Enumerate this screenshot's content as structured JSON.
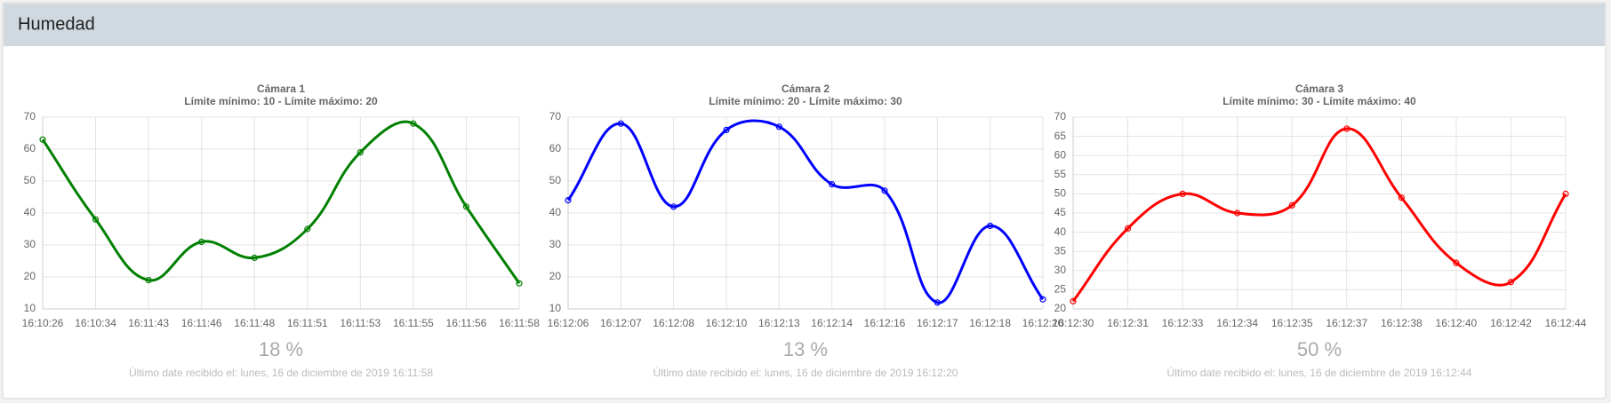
{
  "header": {
    "title": "Humedad"
  },
  "chart_data": [
    {
      "type": "line",
      "title": "Cámara 1",
      "subtitle": "Límite mínimo: 10 - Límite máximo: 20",
      "categories": [
        "16:10:26",
        "16:10:34",
        "16:11:43",
        "16:11:46",
        "16:11:48",
        "16:11:51",
        "16:11:53",
        "16:11:55",
        "16:11:56",
        "16:11:58"
      ],
      "values": [
        63,
        38,
        19,
        31,
        26,
        35,
        59,
        68,
        42,
        18
      ],
      "color": "#008000",
      "ylim": [
        10,
        70
      ],
      "yticks": [
        10,
        20,
        30,
        40,
        50,
        60,
        70
      ],
      "grid": true
    },
    {
      "type": "line",
      "title": "Cámara 2",
      "subtitle": "Límite mínimo: 20 - Límite máximo: 30",
      "categories": [
        "16:12:06",
        "16:12:07",
        "16:12:08",
        "16:12:10",
        "16:12:13",
        "16:12:14",
        "16:12:16",
        "16:12:17",
        "16:12:18",
        "16:12:20"
      ],
      "values": [
        44,
        68,
        42,
        66,
        67,
        49,
        47,
        12,
        36,
        13
      ],
      "color": "#0000ff",
      "ylim": [
        10,
        70
      ],
      "yticks": [
        10,
        20,
        30,
        40,
        50,
        60,
        70
      ],
      "grid": true
    },
    {
      "type": "line",
      "title": "Cámara 3",
      "subtitle": "Límite mínimo: 30 - Límite máximo: 40",
      "categories": [
        "16:12:30",
        "16:12:31",
        "16:12:33",
        "16:12:34",
        "16:12:35",
        "16:12:37",
        "16:12:38",
        "16:12:40",
        "16:12:42",
        "16:12:44"
      ],
      "values": [
        22,
        41,
        50,
        45,
        47,
        67,
        49,
        32,
        27,
        50
      ],
      "color": "#ff0000",
      "ylim": [
        20,
        70
      ],
      "yticks": [
        20,
        25,
        30,
        35,
        40,
        45,
        50,
        55,
        60,
        65,
        70
      ],
      "grid": true
    }
  ],
  "panels": [
    {
      "reading": "18 %",
      "last_received": "Último date recibido el: lunes, 16 de diciembre de 2019 16:11:58"
    },
    {
      "reading": "13 %",
      "last_received": "Último date recibido el: lunes, 16 de diciembre de 2019 16:12:20"
    },
    {
      "reading": "50 %",
      "last_received": "Último date recibido el: lunes, 16 de diciembre de 2019 16:12:44"
    }
  ]
}
